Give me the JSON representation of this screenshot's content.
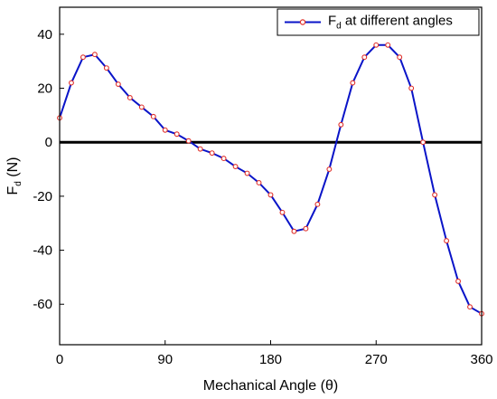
{
  "chart_data": {
    "type": "line",
    "title": "",
    "xlabel": "Mechanical Angle (θ)",
    "ylabel": {
      "main": "F",
      "sub": "d",
      "rest": " (N)"
    },
    "xlim": [
      0,
      360
    ],
    "ylim": [
      -75,
      50
    ],
    "xticks": [
      0,
      90,
      180,
      270,
      360
    ],
    "yticks": [
      40,
      20,
      0,
      -20,
      -40,
      -60
    ],
    "x_tick_labels": [
      "0",
      "90",
      "180",
      "270",
      "360"
    ],
    "y_tick_labels": [
      "40",
      "20",
      "0",
      "-20",
      "-40",
      "-60"
    ],
    "grid": false,
    "zero_line": true,
    "legend": {
      "placement": "top-right",
      "entries": [
        {
          "main": "F",
          "sub": "d",
          "rest": " at different angles"
        }
      ]
    },
    "series": [
      {
        "name": "Fd at different angles",
        "color": "#0a14c8",
        "marker_color": "#e0302a",
        "x": [
          0,
          10,
          20,
          30,
          40,
          50,
          60,
          70,
          80,
          90,
          100,
          110,
          120,
          130,
          140,
          150,
          160,
          170,
          180,
          190,
          200,
          210,
          220,
          230,
          240,
          250,
          260,
          270,
          280,
          290,
          300,
          310,
          320,
          330,
          340,
          350,
          360
        ],
        "y": [
          9,
          22,
          31.5,
          32.5,
          27.5,
          21.5,
          16.5,
          13,
          9.5,
          4.5,
          3,
          0.5,
          -2.5,
          -4,
          -6,
          -9,
          -11.5,
          -15,
          -19.5,
          -26,
          -33,
          -32,
          -23,
          -10,
          6.5,
          22,
          31.5,
          36,
          36,
          31.5,
          20,
          0,
          -19.5,
          -36.5,
          -51.5,
          -61,
          -63.5
        ]
      }
    ]
  }
}
